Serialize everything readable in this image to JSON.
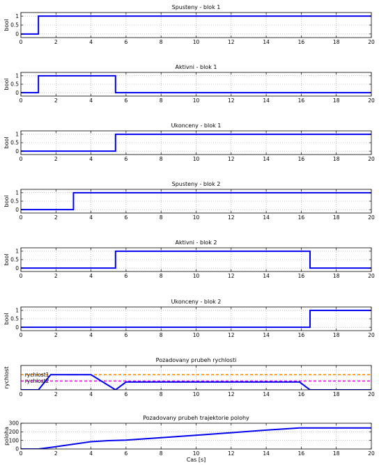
{
  "chart_data": [
    {
      "type": "line",
      "title": "Spusteny - blok 1",
      "ylabel": "bool",
      "xlabel": "",
      "xlim": [
        0,
        20
      ],
      "ylim": [
        -0.2,
        1.2
      ],
      "xticks": [
        "0",
        "2",
        "4",
        "6",
        "8",
        "10",
        "12",
        "14",
        "16",
        "18",
        "20"
      ],
      "yticks": [
        {
          "v": 0,
          "label": "0"
        },
        {
          "v": 0.5,
          "label": "0.5"
        },
        {
          "v": 1,
          "label": "1"
        }
      ],
      "grid": true,
      "series": [
        {
          "color": "#0000ee",
          "dash": false,
          "width": 2,
          "x": [
            0,
            1,
            1,
            20
          ],
          "y": [
            0,
            0,
            1,
            1
          ]
        }
      ]
    },
    {
      "type": "line",
      "title": "Aktivni - blok 1",
      "ylabel": "bool",
      "xlabel": "",
      "xlim": [
        0,
        20
      ],
      "ylim": [
        -0.2,
        1.2
      ],
      "xticks": [
        "0",
        "2",
        "4",
        "6",
        "8",
        "10",
        "12",
        "14",
        "16",
        "18",
        "20"
      ],
      "yticks": [
        {
          "v": 0,
          "label": "0"
        },
        {
          "v": 0.5,
          "label": "0.5"
        },
        {
          "v": 1,
          "label": "1"
        }
      ],
      "grid": true,
      "series": [
        {
          "color": "#0000ee",
          "dash": false,
          "width": 2,
          "x": [
            0,
            1,
            1,
            5.4,
            5.4,
            20
          ],
          "y": [
            0,
            0,
            1,
            1,
            0,
            0
          ]
        }
      ]
    },
    {
      "type": "line",
      "title": "Ukonceny - blok 1",
      "ylabel": "bool",
      "xlabel": "",
      "xlim": [
        0,
        20
      ],
      "ylim": [
        -0.2,
        1.2
      ],
      "xticks": [
        "0",
        "2",
        "4",
        "6",
        "8",
        "10",
        "12",
        "14",
        "16",
        "18",
        "20"
      ],
      "yticks": [
        {
          "v": 0,
          "label": "0"
        },
        {
          "v": 0.5,
          "label": "0.5"
        },
        {
          "v": 1,
          "label": "1"
        }
      ],
      "grid": true,
      "series": [
        {
          "color": "#0000ee",
          "dash": false,
          "width": 2,
          "x": [
            0,
            5.4,
            5.4,
            20
          ],
          "y": [
            0,
            0,
            1,
            1
          ]
        }
      ]
    },
    {
      "type": "line",
      "title": "Spusteny - blok 2",
      "ylabel": "bool",
      "xlabel": "",
      "xlim": [
        0,
        20
      ],
      "ylim": [
        -0.2,
        1.2
      ],
      "xticks": [
        "0",
        "2",
        "4",
        "6",
        "8",
        "10",
        "12",
        "14",
        "16",
        "18",
        "20"
      ],
      "yticks": [
        {
          "v": 0,
          "label": "0"
        },
        {
          "v": 0.5,
          "label": "0.5"
        },
        {
          "v": 1,
          "label": "1"
        }
      ],
      "grid": true,
      "series": [
        {
          "color": "#0000ee",
          "dash": false,
          "width": 2,
          "x": [
            0,
            3,
            3,
            20
          ],
          "y": [
            0,
            0,
            1,
            1
          ]
        }
      ]
    },
    {
      "type": "line",
      "title": "Aktivni - blok 2",
      "ylabel": "bool",
      "xlabel": "",
      "xlim": [
        0,
        20
      ],
      "ylim": [
        -0.2,
        1.2
      ],
      "xticks": [
        "0",
        "2",
        "4",
        "6",
        "8",
        "10",
        "12",
        "14",
        "16",
        "18",
        "20"
      ],
      "yticks": [
        {
          "v": 0,
          "label": "0"
        },
        {
          "v": 0.5,
          "label": "0.5"
        },
        {
          "v": 1,
          "label": "1"
        }
      ],
      "grid": true,
      "series": [
        {
          "color": "#0000ee",
          "dash": false,
          "width": 2,
          "x": [
            0,
            5.4,
            5.4,
            16.5,
            16.5,
            20
          ],
          "y": [
            0,
            0,
            1,
            1,
            0,
            0
          ]
        }
      ]
    },
    {
      "type": "line",
      "title": "Ukonceny - blok 2",
      "ylabel": "bool",
      "xlabel": "",
      "xlim": [
        0,
        20
      ],
      "ylim": [
        -0.2,
        1.2
      ],
      "xticks": [
        "0",
        "2",
        "4",
        "6",
        "8",
        "10",
        "12",
        "14",
        "16",
        "18",
        "20"
      ],
      "yticks": [
        {
          "v": 0,
          "label": "0"
        },
        {
          "v": 0.5,
          "label": "0.5"
        },
        {
          "v": 1,
          "label": "1"
        }
      ],
      "grid": true,
      "series": [
        {
          "color": "#0000ee",
          "dash": false,
          "width": 2,
          "x": [
            0,
            16.5,
            16.5,
            20
          ],
          "y": [
            0,
            0,
            1,
            1
          ]
        }
      ]
    },
    {
      "type": "line",
      "title": "Pozadovany prubeh rychlosti",
      "ylabel": "rychlost",
      "xlabel": "",
      "xlim": [
        0,
        20
      ],
      "ylim": [
        0,
        1
      ],
      "xticks": [
        "0",
        "2",
        "4",
        "6",
        "8",
        "10",
        "12",
        "14",
        "16",
        "18",
        "20"
      ],
      "yticks": [],
      "grid": true,
      "annotations": [
        {
          "text": "rychlost1",
          "x": 0.15,
          "y": 0.62
        },
        {
          "text": "rychlost2",
          "x": 0.15,
          "y": 0.36
        }
      ],
      "series": [
        {
          "color": "#ff8c00",
          "dash": true,
          "width": 1.5,
          "x": [
            0,
            20
          ],
          "y": [
            0.62,
            0.62
          ]
        },
        {
          "color": "#ee00ee",
          "dash": true,
          "width": 1.5,
          "x": [
            0,
            20
          ],
          "y": [
            0.36,
            0.36
          ]
        },
        {
          "color": "#0000ee",
          "dash": false,
          "width": 2,
          "x": [
            0,
            1,
            1.7,
            4,
            5.4,
            6,
            14.9,
            15.9,
            16.5,
            20
          ],
          "y": [
            0,
            0,
            0.62,
            0.62,
            0,
            0.32,
            0.32,
            0.32,
            0,
            0
          ]
        }
      ]
    },
    {
      "type": "line",
      "title": "Pozadovany prubeh trajektorie polohy",
      "ylabel": "poloha",
      "xlabel": "Cas [s]",
      "xlim": [
        0,
        20
      ],
      "ylim": [
        0,
        300
      ],
      "xticks": [
        "0",
        "2",
        "4",
        "6",
        "8",
        "10",
        "12",
        "14",
        "16",
        "18",
        "20"
      ],
      "yticks": [
        {
          "v": 0,
          "label": "0"
        },
        {
          "v": 100,
          "label": "100"
        },
        {
          "v": 200,
          "label": "200"
        },
        {
          "v": 300,
          "label": "300"
        }
      ],
      "grid": true,
      "series": [
        {
          "color": "#0000ee",
          "dash": false,
          "width": 2,
          "x": [
            0,
            1,
            1.7,
            4,
            5,
            6,
            8,
            10,
            12,
            14,
            15.9,
            16.5,
            20
          ],
          "y": [
            0,
            0,
            18,
            85,
            97,
            103,
            132,
            160,
            190,
            220,
            245,
            245,
            245
          ]
        }
      ]
    }
  ]
}
